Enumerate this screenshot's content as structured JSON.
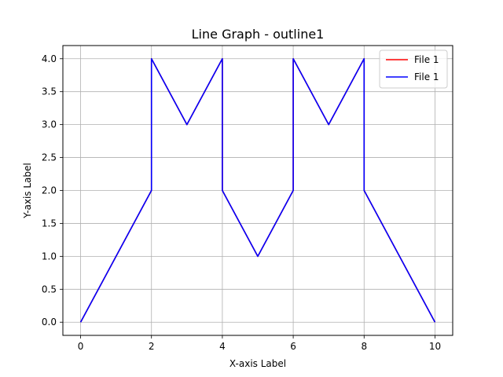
{
  "chart_data": {
    "type": "line",
    "title": "Line Graph - outline1",
    "xlabel": "X-axis Label",
    "ylabel": "Y-axis Label",
    "xlim": [
      -0.5,
      10.5
    ],
    "ylim": [
      -0.2,
      4.2
    ],
    "xticks": [
      0,
      2,
      4,
      6,
      8,
      10
    ],
    "yticks": [
      0.0,
      0.5,
      1.0,
      1.5,
      2.0,
      2.5,
      3.0,
      3.5,
      4.0
    ],
    "xtick_labels": [
      "0",
      "2",
      "4",
      "6",
      "8",
      "10"
    ],
    "ytick_labels": [
      "0.0",
      "0.5",
      "1.0",
      "1.5",
      "2.0",
      "2.5",
      "3.0",
      "3.5",
      "4.0"
    ],
    "grid": true,
    "legend_position": "top-right",
    "series": [
      {
        "name": "File 1",
        "color": "#ff0000",
        "x": [
          0,
          2,
          2,
          3,
          4,
          4,
          5,
          6,
          6,
          7,
          8,
          8,
          10
        ],
        "y": [
          0,
          2,
          4,
          3,
          4,
          2,
          1,
          2,
          4,
          3,
          4,
          2,
          0
        ]
      },
      {
        "name": "File 1",
        "color": "#0000ff",
        "x": [
          0,
          2,
          2,
          3,
          4,
          4,
          5,
          6,
          6,
          7,
          8,
          8,
          10
        ],
        "y": [
          0,
          2,
          4,
          3,
          4,
          2,
          1,
          2,
          4,
          3,
          4,
          2,
          0
        ]
      }
    ]
  }
}
